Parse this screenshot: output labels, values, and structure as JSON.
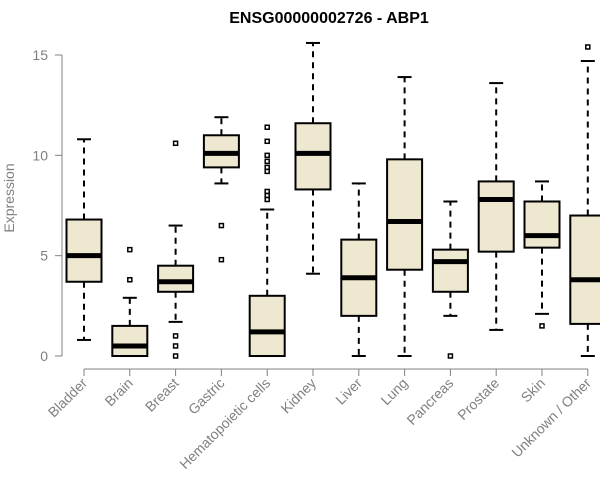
{
  "chart_data": {
    "type": "boxplot",
    "title": "ENSG00000002726 - ABP1",
    "xlabel": "",
    "ylabel": "Expression",
    "ylim": [
      0,
      15.5
    ],
    "yticks": [
      0,
      5,
      10,
      15
    ],
    "grid": false,
    "box_fill": "#efe8d0",
    "categories": [
      "Bladder",
      "Brain",
      "Breast",
      "Gastric",
      "Hematopoietic cells",
      "Kidney",
      "Liver",
      "Lung",
      "Pancreas",
      "Prostate",
      "Skin",
      "Unknown / Other"
    ],
    "series": [
      {
        "whisker_low": 0.8,
        "q1": 3.7,
        "median": 5.0,
        "q3": 6.8,
        "whisker_high": 10.8,
        "outliers": []
      },
      {
        "whisker_low": 0.0,
        "q1": 0.0,
        "median": 0.5,
        "q3": 1.5,
        "whisker_high": 2.9,
        "outliers": [
          3.8,
          5.3
        ]
      },
      {
        "whisker_low": 1.7,
        "q1": 3.2,
        "median": 3.7,
        "q3": 4.5,
        "whisker_high": 6.5,
        "outliers": [
          0.0,
          0.5,
          1.0,
          10.6
        ]
      },
      {
        "whisker_low": 8.6,
        "q1": 9.4,
        "median": 10.1,
        "q3": 11.0,
        "whisker_high": 11.9,
        "outliers": [
          4.8,
          6.5
        ]
      },
      {
        "whisker_low": 0.0,
        "q1": 0.0,
        "median": 1.2,
        "q3": 3.0,
        "whisker_high": 7.3,
        "outliers": [
          7.8,
          8.0,
          8.2,
          9.2,
          9.4,
          9.7,
          10.0,
          10.7,
          11.4
        ]
      },
      {
        "whisker_low": 4.1,
        "q1": 8.3,
        "median": 10.1,
        "q3": 11.6,
        "whisker_high": 15.6,
        "outliers": []
      },
      {
        "whisker_low": 0.0,
        "q1": 2.0,
        "median": 3.9,
        "q3": 5.8,
        "whisker_high": 8.6,
        "outliers": []
      },
      {
        "whisker_low": 0.0,
        "q1": 4.3,
        "median": 6.7,
        "q3": 9.8,
        "whisker_high": 13.9,
        "outliers": []
      },
      {
        "whisker_low": 2.0,
        "q1": 3.2,
        "median": 4.7,
        "q3": 5.3,
        "whisker_high": 7.7,
        "outliers": [
          0.0
        ]
      },
      {
        "whisker_low": 1.3,
        "q1": 5.2,
        "median": 7.8,
        "q3": 8.7,
        "whisker_high": 13.6,
        "outliers": []
      },
      {
        "whisker_low": 2.1,
        "q1": 5.4,
        "median": 6.0,
        "q3": 7.7,
        "whisker_high": 8.7,
        "outliers": [
          1.5
        ]
      },
      {
        "whisker_low": 0.0,
        "q1": 1.6,
        "median": 3.8,
        "q3": 7.0,
        "whisker_high": 14.7,
        "outliers": [
          15.4
        ]
      }
    ]
  }
}
